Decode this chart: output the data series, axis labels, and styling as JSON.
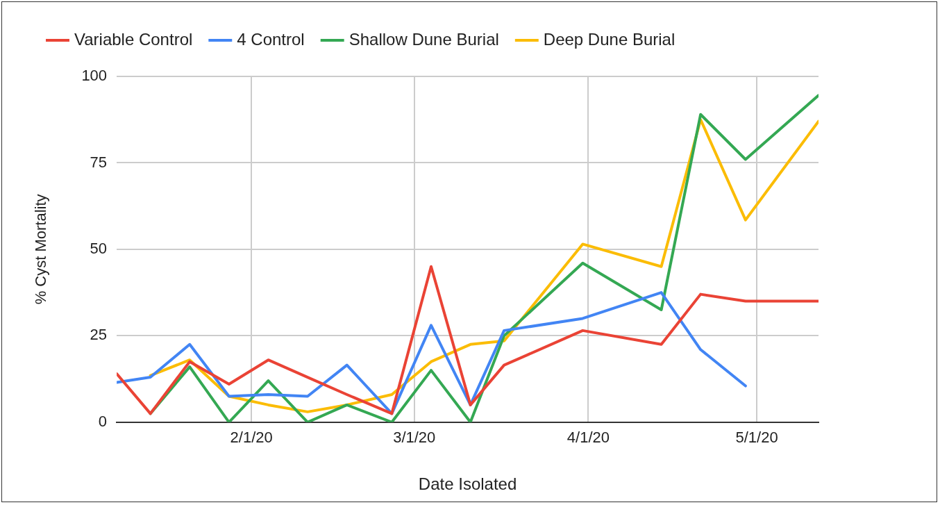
{
  "chart_data": {
    "type": "line",
    "xlabel": "Date Isolated",
    "ylabel": "% Cyst Mortality",
    "x": [
      "2020-01-08",
      "2020-01-14",
      "2020-01-21",
      "2020-01-28",
      "2020-02-04",
      "2020-02-11",
      "2020-02-18",
      "2020-02-26",
      "2020-03-04",
      "2020-03-11",
      "2020-03-17",
      "2020-03-31",
      "2020-04-14",
      "2020-04-21",
      "2020-04-29",
      "2020-05-12"
    ],
    "series": [
      {
        "name": "Variable Control",
        "color": "#ea4335",
        "values": [
          14,
          2.5,
          17.5,
          11,
          18,
          13,
          8,
          2.5,
          45,
          5,
          16.5,
          26.5,
          22.5,
          37,
          35,
          35
        ]
      },
      {
        "name": "4 Control",
        "color": "#4285f4",
        "values": [
          11.5,
          13,
          22.5,
          7.5,
          8,
          7.5,
          16.5,
          2.5,
          28,
          5,
          26.5,
          30,
          37.5,
          21,
          10.5,
          null
        ]
      },
      {
        "name": "Shallow Dune Burial",
        "color": "#34a853",
        "values": [
          null,
          2.5,
          16,
          0,
          12,
          0,
          5,
          0,
          15,
          0,
          25,
          46,
          32.5,
          89,
          76,
          94.5
        ]
      },
      {
        "name": "Deep Dune Burial",
        "color": "#fbbc04",
        "values": [
          null,
          13.5,
          18,
          7.5,
          5,
          3,
          5,
          8,
          17.5,
          22.5,
          23.5,
          51.5,
          45,
          87.5,
          58.5,
          87
        ]
      }
    ],
    "xlim": [
      "2020-01-08",
      "2020-05-12"
    ],
    "xticks": [
      {
        "value": "2020-02-01",
        "label": "2/1/20"
      },
      {
        "value": "2020-03-01",
        "label": "3/1/20"
      },
      {
        "value": "2020-04-01",
        "label": "4/1/20"
      },
      {
        "value": "2020-05-01",
        "label": "5/1/20"
      }
    ],
    "ylim": [
      0,
      100
    ],
    "yticks": [
      0,
      25,
      50,
      75,
      100
    ],
    "grid": true,
    "legend": "top left",
    "marker": "none",
    "line_style": "solid"
  }
}
